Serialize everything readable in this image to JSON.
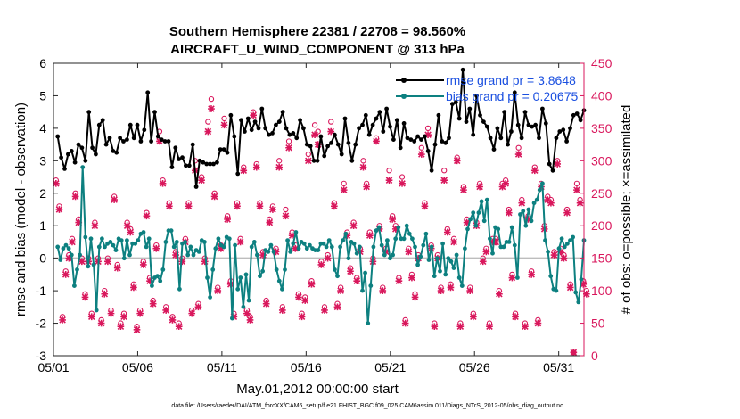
{
  "chart_data": {
    "type": "line",
    "title": [
      "Southern Hemisphere 22381 / 22708 = 98.560%",
      "AIRCRAFT_U_WIND_COMPONENT @ 313 hPa"
    ],
    "xlabel": "May.01,2012 00:00:00 start",
    "ylabel_left": "rmse and bias (model - observation)",
    "ylabel_right": "# of obs: o=possible; ×=assimilated",
    "footer": "data file: /Users/raeder/DAI/ATM_forcXX/CAM6_setup/f.e21.FHIST_BGC.f09_025.CAM6assim.011/Diags_NTrS_2012-05/obs_diag_output.nc",
    "x_range_days": [
      0,
      31.5
    ],
    "ylim_left": [
      -3,
      6
    ],
    "ylim_right": [
      0,
      450
    ],
    "x_ticks": [
      {
        "day": 0,
        "label": "05/01"
      },
      {
        "day": 5,
        "label": "05/06"
      },
      {
        "day": 10,
        "label": "05/11"
      },
      {
        "day": 15,
        "label": "05/16"
      },
      {
        "day": 20,
        "label": "05/21"
      },
      {
        "day": 25,
        "label": "05/26"
      },
      {
        "day": 30,
        "label": "05/31"
      }
    ],
    "y_ticks_left": [
      "-3",
      "-2",
      "-1",
      "0",
      "1",
      "2",
      "3",
      "4",
      "5",
      "6"
    ],
    "y_ticks_right": [
      "0",
      "50",
      "100",
      "150",
      "200",
      "250",
      "300",
      "350",
      "400",
      "450"
    ],
    "legend": [
      "rmse grand pr = 3.8648",
      "bias grand pr = 0.20675"
    ],
    "colors": {
      "rmse": "#000000",
      "bias": "#0d8080",
      "obs": "#d9175c",
      "zero_line": "#bdbdbd"
    },
    "series": [
      {
        "name": "rmse",
        "values": [
          3.75,
          3.1,
          2.75,
          3.2,
          3.3,
          2.95,
          3.5,
          3.4,
          3.0,
          4.5,
          3.4,
          3.2,
          4.1,
          4.25,
          3.5,
          3.7,
          3.3,
          3.25,
          3.7,
          3.6,
          3.65,
          4.1,
          3.7,
          4.1,
          3.6,
          3.95,
          5.1,
          3.6,
          4.5,
          3.75,
          3.65,
          3.6,
          3.6,
          2.8,
          3.4,
          3.05,
          3.1,
          2.85,
          2.85,
          3.5,
          2.2,
          3.0,
          2.95,
          2.9,
          2.9,
          2.9,
          2.95,
          3.35,
          3.35,
          3.25,
          4.4,
          3.75,
          2.6,
          4.25,
          3.9,
          4.3,
          3.95,
          4.2,
          4.0,
          4.6,
          4.0,
          3.8,
          3.85,
          4.1,
          4.2,
          4.5,
          4.0,
          3.8,
          3.85,
          3.7,
          4.25,
          4.0,
          3.5,
          3.45,
          3.0,
          3.0,
          3.75,
          3.15,
          3.45,
          3.55,
          3.8,
          3.5,
          3.2,
          4.3,
          3.55,
          3.0,
          3.5,
          4.0,
          4.1,
          4.4,
          3.8,
          4.1,
          4.3,
          4.5,
          3.9,
          4.6,
          4.05,
          3.65,
          4.25,
          3.4,
          4.15,
          3.7,
          3.65,
          3.6,
          3.75,
          3.65,
          3.75,
          3.3,
          2.7,
          3.5,
          4.4,
          3.6,
          3.55,
          3.7,
          4.75,
          4.8,
          4.3,
          5.8,
          4.2,
          4.6,
          3.8,
          5.0,
          4.4,
          4.2,
          4.05,
          3.7,
          3.35,
          4.0,
          3.7,
          4.5,
          3.5,
          3.9,
          5.1,
          4.1,
          3.7,
          4.5,
          4.1,
          4.05,
          4.1,
          3.7,
          4.6,
          4.15,
          2.9,
          2.7,
          3.7,
          3.9,
          3.95,
          3.6,
          4.0,
          4.4,
          4.45,
          4.25,
          4.55
        ]
      },
      {
        "name": "bias",
        "values": [
          0.35,
          -0.05,
          0.3,
          0.4,
          0.3,
          0.1,
          -0.85,
          -0.35,
          0.1,
          2.8,
          0.65,
          -0.25,
          0.6,
          -0.2,
          -1.6,
          0.35,
          0.6,
          0.35,
          0.45,
          0.5,
          0.4,
          0.25,
          0.6,
          0.55,
          0.0,
          0.55,
          0.1,
          0.45,
          0.45,
          0.55,
          0.75,
          0.8,
          0.35,
          0.6,
          -0.85,
          -0.6,
          -0.55,
          -0.7,
          -0.35,
          0.5,
          0.85,
          0.85,
          0.35,
          0.5,
          -0.95,
          0.45,
          0.5,
          0.1,
          0.35,
          0.1,
          0.25,
          0.2,
          0.55,
          0.5,
          -0.6,
          -1.2,
          -0.35,
          0.3,
          0.6,
          0.4,
          0.35,
          0.65,
          0.6,
          -1.85,
          0.4,
          -0.95,
          -0.6,
          -1.5,
          -0.5,
          -1.3,
          0.35,
          0.5,
          0.1,
          -0.55,
          -0.4,
          0.25,
          0.2,
          0.4,
          0.2,
          -0.35,
          -0.7,
          -0.95,
          -0.35,
          0.55,
          0.2,
          0.45,
          0.8,
          0.3,
          0.5,
          0.45,
          0.3,
          0.4,
          0.3,
          0.25,
          0.25,
          0.45,
          0.45,
          0.35,
          0.55,
          0.35,
          -0.35,
          -0.55,
          0.35,
          0.55,
          0.75,
          0.0,
          0.5,
          0.45,
          0.15,
          0.35,
          -1.0,
          -0.45,
          -2.0,
          -0.85,
          0.35,
          0.85,
          0.95,
          0.4,
          0.1,
          0.55,
          0.0,
          0.1,
          0.6,
          0.95,
          0.6,
          0.6,
          1.0,
          0.75,
          0.6,
          0.35,
          -0.2,
          0.05,
          0.4,
          0.75,
          -0.05,
          0.35,
          -0.55,
          0.0,
          -0.4,
          0.45,
          -0.5,
          0.0,
          -0.1,
          -0.3,
          0.1,
          -0.6,
          -0.85,
          0.3,
          0.9,
          1.2,
          1.4,
          1.0,
          1.4,
          1.75,
          1.15,
          1.8,
          0.6,
          0.15,
          0.95,
          0.9,
          0.35,
          0.35,
          0.5,
          0.5,
          0.95,
          0.4,
          -0.6,
          1.35,
          1.45,
          1.0,
          1.5,
          1.15,
          1.7,
          1.8,
          2.1,
          2.3,
          0.55,
          0.2,
          -0.55,
          -0.95,
          -1.0,
          0.3,
          0.6,
          0.35,
          0.45,
          0.55,
          0.65,
          -1.05,
          -1.35,
          -0.65,
          0.55
        ]
      },
      {
        "name": "obs_assimilated",
        "values": [
          265,
          225,
          55,
          125,
          150,
          175,
          245,
          205,
          145,
          90,
          145,
          60,
          200,
          145,
          50,
          95,
          145,
          65,
          240,
          135,
          45,
          60,
          200,
          190,
          105,
          40,
          65,
          140,
          215,
          115,
          80,
          165,
          330,
          265,
          70,
          230,
          55,
          155,
          45,
          145,
          175,
          230,
          65,
          285,
          75,
          270,
          145,
          345,
          380,
          245,
          100,
          165,
          355,
          210,
          110,
          60,
          230,
          175,
          285,
          65,
          55,
          370,
          290,
          230,
          155,
          80,
          205,
          225,
          160,
          290,
          70,
          215,
          320,
          185,
          165,
          90,
          60,
          85,
          300,
          110,
          340,
          325,
          140,
          70,
          150,
          345,
          230,
          75,
          100,
          255,
          185,
          130,
          200,
          115,
          160,
          290,
          260,
          185,
          145,
          330,
          195,
          100,
          160,
          270,
          210,
          195,
          115,
          265,
          50,
          160,
          120,
          90,
          150,
          310,
          230,
          340,
          165,
          45,
          150,
          100,
          270,
          190,
          105,
          175,
          300,
          45,
          255,
          205,
          100,
          60,
          200,
          260,
          145,
          160,
          45,
          175,
          175,
          95,
          260,
          265,
          220,
          120,
          60,
          310,
          235,
          45,
          210,
          125,
          285,
          50,
          260,
          195,
          240,
          235,
          155,
          295,
          160,
          150,
          220,
          105,
          5,
          255,
          235,
          110,
          95
        ]
      },
      {
        "name": "obs_possible",
        "values": [
          270,
          230,
          60,
          130,
          155,
          180,
          250,
          210,
          150,
          95,
          150,
          65,
          205,
          150,
          55,
          100,
          150,
          70,
          245,
          140,
          50,
          65,
          205,
          195,
          110,
          45,
          70,
          145,
          220,
          120,
          85,
          170,
          345,
          270,
          75,
          235,
          60,
          160,
          50,
          150,
          180,
          235,
          70,
          300,
          80,
          275,
          150,
          360,
          395,
          250,
          105,
          170,
          365,
          215,
          115,
          65,
          235,
          180,
          290,
          70,
          60,
          375,
          295,
          235,
          160,
          85,
          210,
          230,
          165,
          300,
          75,
          225,
          330,
          190,
          170,
          95,
          65,
          90,
          310,
          115,
          355,
          345,
          145,
          75,
          155,
          360,
          235,
          80,
          105,
          265,
          190,
          135,
          205,
          120,
          165,
          300,
          265,
          190,
          150,
          335,
          200,
          105,
          165,
          285,
          215,
          200,
          120,
          275,
          55,
          165,
          125,
          95,
          155,
          320,
          235,
          350,
          170,
          50,
          155,
          105,
          285,
          195,
          110,
          180,
          305,
          50,
          260,
          210,
          105,
          65,
          205,
          265,
          150,
          165,
          50,
          180,
          180,
          100,
          265,
          270,
          225,
          125,
          65,
          320,
          240,
          50,
          215,
          130,
          290,
          55,
          265,
          200,
          245,
          240,
          160,
          300,
          165,
          155,
          225,
          110,
          5,
          265,
          240,
          115,
          100
        ]
      }
    ]
  }
}
